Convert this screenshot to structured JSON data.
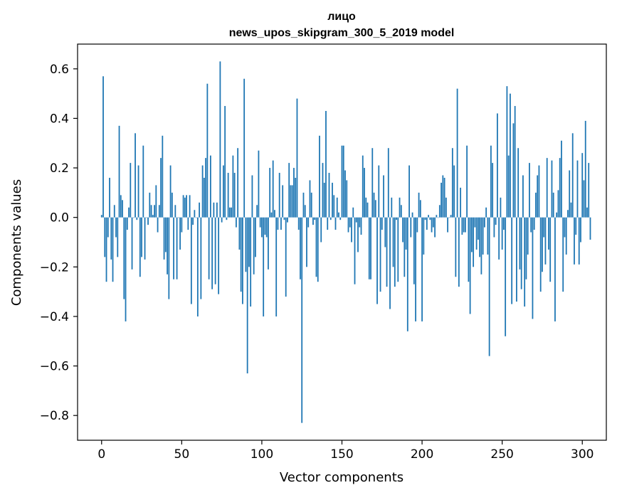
{
  "chart_data": {
    "type": "bar",
    "title": "лицо",
    "subtitle": "news_upos_skipgram_300_5_2019 model",
    "xlabel": "Vector components",
    "ylabel": "Components values",
    "xlim": [
      -15,
      315
    ],
    "ylim": [
      -0.9,
      0.7
    ],
    "xticks": [
      0,
      50,
      100,
      150,
      200,
      250,
      300
    ],
    "xtick_labels": [
      "0",
      "50",
      "100",
      "150",
      "200",
      "250",
      "300"
    ],
    "yticks": [
      -0.8,
      -0.6,
      -0.4,
      -0.2,
      0.0,
      0.2,
      0.4,
      0.6
    ],
    "ytick_labels": [
      "−0.8",
      "−0.6",
      "−0.4",
      "−0.2",
      "0.0",
      "0.2",
      "0.4",
      "0.6"
    ],
    "bar_color": "#1f77b4",
    "values": [
      0.01,
      0.57,
      -0.16,
      -0.26,
      -0.08,
      0.16,
      -0.17,
      -0.26,
      0.05,
      -0.08,
      -0.16,
      0.37,
      0.09,
      0.07,
      -0.33,
      -0.42,
      -0.05,
      0.04,
      0.22,
      -0.21,
      0.0,
      0.34,
      -0.01,
      0.21,
      -0.24,
      -0.16,
      0.29,
      -0.17,
      0.0,
      -0.03,
      0.1,
      0.05,
      0.01,
      0.05,
      0.13,
      -0.06,
      0.05,
      0.24,
      0.33,
      -0.17,
      -0.14,
      -0.23,
      -0.33,
      0.21,
      0.1,
      -0.25,
      0.05,
      -0.25,
      0.0,
      -0.13,
      -0.06,
      0.09,
      0.08,
      0.09,
      -0.05,
      0.09,
      -0.35,
      -0.03,
      0.03,
      0.0,
      -0.4,
      0.06,
      -0.33,
      0.21,
      0.16,
      0.24,
      0.54,
      -0.25,
      0.25,
      -0.29,
      0.06,
      -0.27,
      0.06,
      -0.31,
      0.63,
      -0.02,
      0.21,
      0.45,
      -0.01,
      0.18,
      0.04,
      0.04,
      0.25,
      0.18,
      -0.04,
      0.28,
      -0.13,
      -0.3,
      -0.35,
      0.56,
      -0.22,
      -0.63,
      -0.2,
      -0.36,
      0.17,
      -0.23,
      -0.16,
      0.05,
      0.27,
      -0.04,
      -0.08,
      -0.4,
      -0.07,
      -0.08,
      -0.21,
      0.2,
      0.02,
      0.23,
      0.03,
      -0.4,
      -0.05,
      0.18,
      -0.05,
      0.13,
      -0.01,
      -0.32,
      -0.02,
      0.22,
      0.13,
      0.13,
      0.2,
      0.16,
      0.48,
      -0.05,
      -0.25,
      -0.83,
      0.1,
      0.05,
      -0.2,
      -0.04,
      0.15,
      0.1,
      -0.03,
      -0.01,
      -0.24,
      -0.26,
      0.33,
      -0.1,
      0.22,
      0.14,
      0.43,
      -0.05,
      0.18,
      -0.01,
      0.14,
      0.09,
      -0.05,
      0.08,
      0.02,
      -0.01,
      0.29,
      0.29,
      0.19,
      0.15,
      -0.06,
      -0.04,
      -0.1,
      0.04,
      -0.27,
      -0.02,
      -0.14,
      -0.04,
      -0.07,
      0.25,
      0.2,
      0.08,
      0.06,
      -0.25,
      -0.25,
      0.28,
      0.1,
      0.07,
      -0.35,
      0.21,
      -0.3,
      -0.05,
      0.17,
      -0.12,
      -0.28,
      0.28,
      -0.37,
      0.08,
      -0.2,
      -0.28,
      -0.01,
      -0.26,
      0.08,
      0.05,
      -0.1,
      -0.24,
      -0.13,
      -0.46,
      0.21,
      -0.08,
      0.02,
      -0.27,
      -0.42,
      -0.06,
      0.1,
      0.07,
      -0.42,
      -0.15,
      -0.01,
      -0.05,
      0.01,
      -0.01,
      -0.06,
      -0.04,
      -0.08,
      0.01,
      0.0,
      0.05,
      0.14,
      0.17,
      0.16,
      0.08,
      -0.06,
      0.0,
      0.01,
      0.28,
      0.21,
      -0.24,
      0.52,
      -0.28,
      0.12,
      -0.07,
      -0.06,
      -0.06,
      0.29,
      -0.26,
      -0.39,
      -0.14,
      -0.2,
      -0.04,
      -0.13,
      -0.09,
      -0.16,
      -0.23,
      -0.15,
      -0.04,
      0.04,
      -0.15,
      -0.56,
      0.29,
      0.22,
      -0.08,
      -0.03,
      0.42,
      -0.17,
      0.08,
      -0.13,
      -0.05,
      -0.48,
      0.53,
      0.25,
      0.5,
      -0.35,
      0.38,
      0.45,
      -0.34,
      0.28,
      -0.21,
      -0.29,
      0.17,
      -0.36,
      -0.25,
      -0.15,
      0.22,
      -0.06,
      -0.41,
      -0.05,
      0.1,
      0.17,
      0.21,
      -0.3,
      -0.22,
      -0.08,
      -0.19,
      0.24,
      -0.13,
      -0.26,
      0.23,
      0.1,
      -0.42,
      0.02,
      0.11,
      0.24,
      0.31,
      -0.3,
      -0.08,
      -0.15,
      0.03,
      0.19,
      0.06,
      0.34,
      -0.19,
      -0.07,
      0.23,
      -0.19,
      -0.1,
      0.26,
      0.15,
      0.39,
      0.04,
      0.22,
      -0.09
    ]
  }
}
